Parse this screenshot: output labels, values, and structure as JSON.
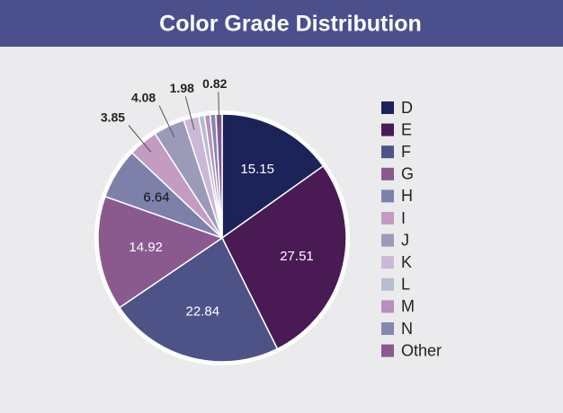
{
  "chart_data": {
    "type": "pie",
    "title": "Color Grade Distribution",
    "categories": [
      "D",
      "E",
      "F",
      "G",
      "H",
      "I",
      "J",
      "K",
      "L",
      "M",
      "N",
      "Other"
    ],
    "values": [
      15.15,
      27.51,
      22.84,
      14.92,
      6.64,
      3.85,
      4.08,
      1.98,
      0.75,
      0.73,
      0.73,
      0.82
    ],
    "value_labels": [
      "15.15",
      "27.51",
      "22.84",
      "14.92",
      "6.64",
      "3.85",
      "4.08",
      "1.98",
      null,
      null,
      null,
      "0.82"
    ],
    "colors": [
      "#1c2358",
      "#4a1a55",
      "#4d5287",
      "#8a5a8e",
      "#7d81aa",
      "#c49cc1",
      "#9c9ab9",
      "#cbb7d6",
      "#b8bccf",
      "#b88fbd",
      "#8388ad",
      "#8a5a90"
    ],
    "legend": "right"
  }
}
